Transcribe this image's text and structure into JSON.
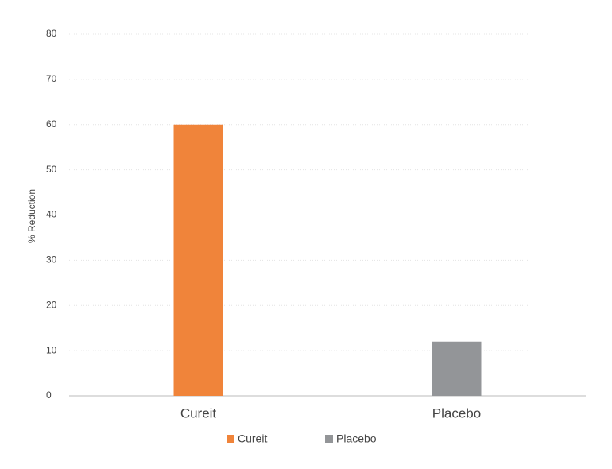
{
  "chart_data": {
    "type": "bar",
    "y_label": "% Reduction",
    "categories": [
      "Cureit",
      "Placebo"
    ],
    "series": [
      {
        "name": "Cureit",
        "color": "#f0843a",
        "values": [
          60,
          null
        ]
      },
      {
        "name": "Placebo",
        "color": "#939598",
        "values": [
          null,
          12
        ]
      }
    ],
    "ylim": [
      0,
      80
    ],
    "yticks": [
      0,
      10,
      20,
      30,
      40,
      50,
      60,
      70,
      80
    ],
    "grid": true
  }
}
